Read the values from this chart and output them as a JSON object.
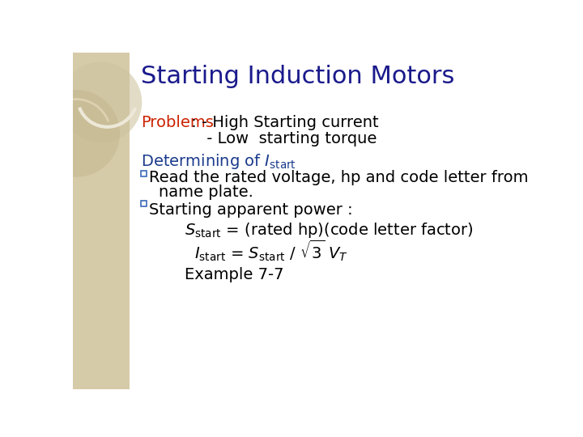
{
  "title": "Starting Induction Motors",
  "title_color": "#1a1a8c",
  "title_fontsize": 22,
  "bg_color": "#ffffff",
  "sidebar_color": "#d6cba8",
  "problems_label": "Problems",
  "problems_label_color": "#cc2200",
  "problems_text1": " : - High Starting current",
  "problems_text2": "             - Low  starting torque",
  "determining_color": "#1a3a8c",
  "bullet_color": "#3a6ab8",
  "body_color": "#000000",
  "body_fontsize": 14,
  "example_text": "Example 7-7"
}
